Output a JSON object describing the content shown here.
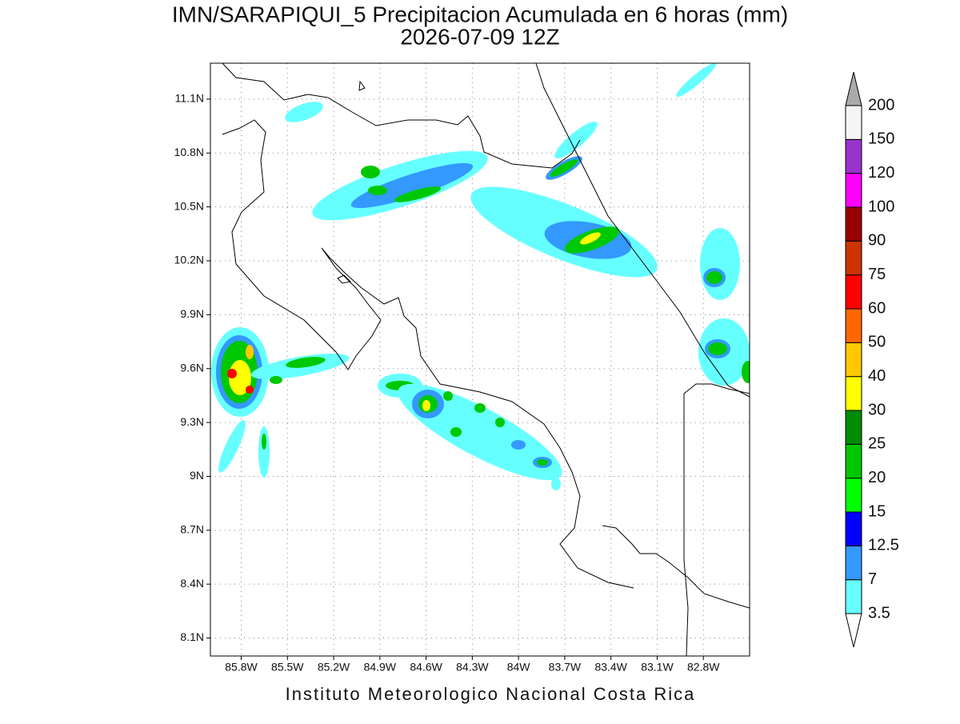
{
  "header": {
    "title": "IMN/SARAPIQUI_5 Precipitacion Acumulada en 6 horas (mm)",
    "subtitle": "2026-07-09 12Z"
  },
  "map": {
    "lat_range": [
      8.0,
      11.3
    ],
    "lon_range": [
      -86.0,
      -82.5
    ],
    "grid": true,
    "lat_ticks": [
      {
        "value": 11.1,
        "label": "11.1N"
      },
      {
        "value": 10.8,
        "label": "10.8N"
      },
      {
        "value": 10.5,
        "label": "10.5N"
      },
      {
        "value": 10.2,
        "label": "10.2N"
      },
      {
        "value": 9.9,
        "label": "9.9N"
      },
      {
        "value": 9.6,
        "label": "9.6N"
      },
      {
        "value": 9.3,
        "label": "9.3N"
      },
      {
        "value": 9.0,
        "label": "9N"
      },
      {
        "value": 8.7,
        "label": "8.7N"
      },
      {
        "value": 8.4,
        "label": "8.4N"
      },
      {
        "value": 8.1,
        "label": "8.1N"
      }
    ],
    "lon_ticks": [
      {
        "value": -85.8,
        "label": "85.8W"
      },
      {
        "value": -85.5,
        "label": "85.5W"
      },
      {
        "value": -85.2,
        "label": "85.2W"
      },
      {
        "value": -84.9,
        "label": "84.9W"
      },
      {
        "value": -84.6,
        "label": "84.6W"
      },
      {
        "value": -84.3,
        "label": "84.3W"
      },
      {
        "value": -84.0,
        "label": "84W"
      },
      {
        "value": -83.7,
        "label": "83.7W"
      },
      {
        "value": -83.4,
        "label": "83.4W"
      },
      {
        "value": -83.1,
        "label": "83.1W"
      },
      {
        "value": -82.8,
        "label": "82.8W"
      }
    ]
  },
  "colorbar": {
    "levels": [
      3.5,
      7,
      12.5,
      15,
      20,
      25,
      30,
      40,
      50,
      60,
      75,
      90,
      100,
      120,
      150,
      200
    ],
    "colors": [
      "#66ffff",
      "#3399ff",
      "#0000ff",
      "#00ff00",
      "#00c800",
      "#008c00",
      "#ffff00",
      "#ffc800",
      "#ff6600",
      "#ff0000",
      "#cc3300",
      "#990000",
      "#ff00ff",
      "#9933cc",
      "#f5f5f5"
    ],
    "under_color": "#ffffff",
    "over_color": "#aaaaaa"
  },
  "footer": "Instituto Meteorologico Nacional Costa Rica"
}
